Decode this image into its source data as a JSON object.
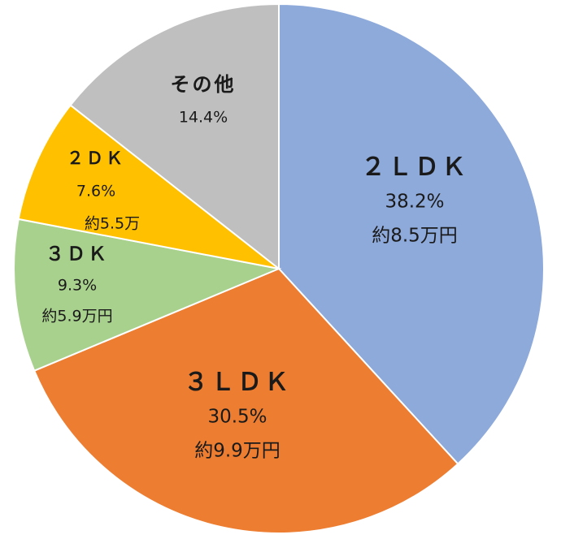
{
  "chart_data": {
    "type": "pie",
    "title": "",
    "start_angle_deg": 0,
    "direction": "clockwise",
    "slices": [
      {
        "name": "２ＬＤＫ",
        "percent_label": "38.2%",
        "price_label": "約8.5万円",
        "value": 38.2,
        "color": "#8eaadb"
      },
      {
        "name": "３ＬＤＫ",
        "percent_label": "30.5%",
        "price_label": "約9.9万円",
        "value": 30.5,
        "color": "#ed7d31"
      },
      {
        "name": "３ＤＫ",
        "percent_label": "9.3%",
        "price_label": "約5.9万円",
        "value": 9.3,
        "color": "#a9d18e"
      },
      {
        "name": "２ＤＫ",
        "percent_label": "7.6%",
        "price_label": "約5.5万",
        "value": 7.6,
        "color": "#ffc000"
      },
      {
        "name": "その他",
        "percent_label": "14.4%",
        "price_label": "",
        "value": 14.4,
        "color": "#bfbfbf"
      }
    ]
  }
}
